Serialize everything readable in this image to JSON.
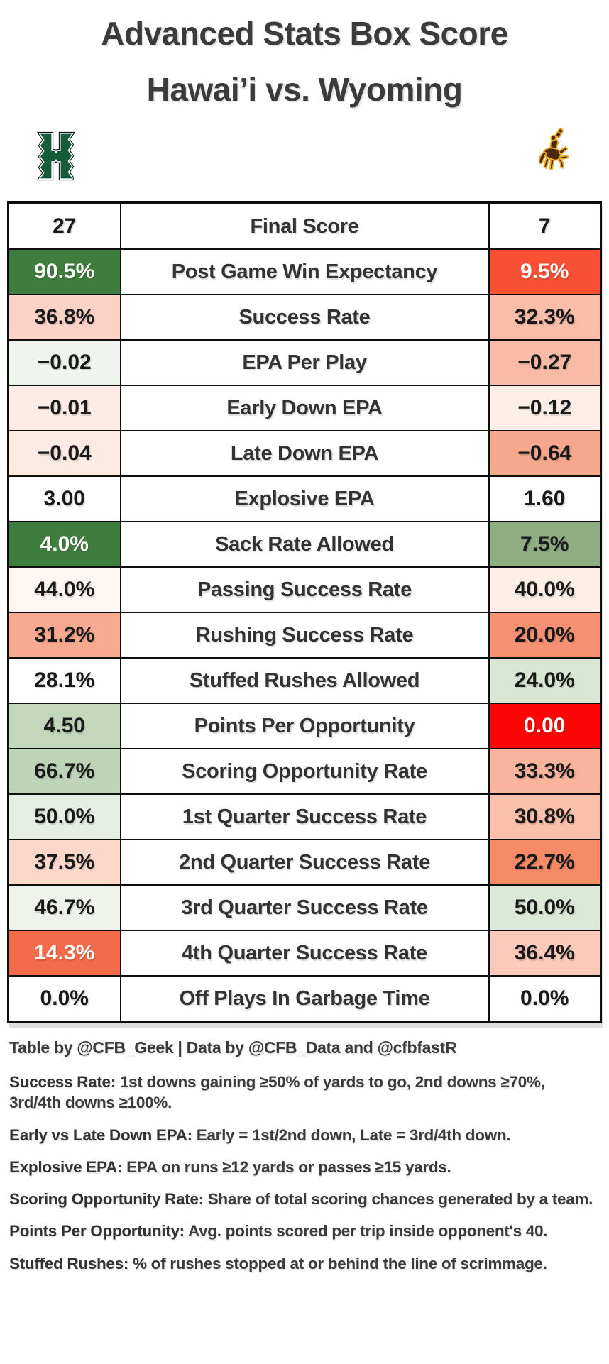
{
  "title_line1": "Advanced Stats Box Score",
  "title_line2": "Hawai’i vs. Wyoming",
  "teams": {
    "hawaii": {
      "name": "Hawai’i",
      "primary_color": "#175c3a"
    },
    "wyoming": {
      "name": "Wyoming",
      "primary_color": "#4c2b0d",
      "accent_color": "#e9a82a"
    }
  },
  "chart_data": {
    "type": "table",
    "title": "Advanced Stats Box Score — Hawai’i vs. Wyoming",
    "categories": [
      "Final Score",
      "Post Game Win Expectancy",
      "Success Rate",
      "EPA Per Play",
      "Early Down EPA",
      "Late Down EPA",
      "Explosive EPA",
      "Sack Rate Allowed",
      "Passing Success Rate",
      "Rushing Success Rate",
      "Stuffed Rushes Allowed",
      "Points Per Opportunity",
      "Scoring Opportunity Rate",
      "1st Quarter Success Rate",
      "2nd Quarter Success Rate",
      "3rd Quarter Success Rate",
      "4th Quarter Success Rate",
      "Off Plays In Garbage Time"
    ],
    "series": [
      {
        "name": "Hawai’i",
        "values": [
          "27",
          "90.5%",
          "36.8%",
          "−0.02",
          "−0.01",
          "−0.04",
          "3.00",
          "4.0%",
          "44.0%",
          "31.2%",
          "28.1%",
          "4.50",
          "66.7%",
          "50.0%",
          "37.5%",
          "46.7%",
          "14.3%",
          "0.0%"
        ]
      },
      {
        "name": "Wyoming",
        "values": [
          "7",
          "9.5%",
          "32.3%",
          "−0.27",
          "−0.12",
          "−0.64",
          "1.60",
          "7.5%",
          "40.0%",
          "20.0%",
          "24.0%",
          "0.00",
          "33.3%",
          "30.8%",
          "22.7%",
          "50.0%",
          "36.4%",
          "0.0%"
        ]
      }
    ],
    "legend_position": "none",
    "grid": true
  },
  "table": {
    "rows": [
      {
        "label": "Final Score",
        "hawaii": "27",
        "hawaii_bg": "#ffffff",
        "wyoming": "7",
        "wyoming_bg": "#ffffff"
      },
      {
        "label": "Post Game Win Expectancy",
        "hawaii": "90.5%",
        "hawaii_bg": "#3e7d3d",
        "hawaii_fg": "#ffffff",
        "wyoming": "9.5%",
        "wyoming_bg": "#f94f33",
        "wyoming_fg": "#ffffff"
      },
      {
        "label": "Success Rate",
        "hawaii": "36.8%",
        "hawaii_bg": "#fbd3c6",
        "wyoming": "32.3%",
        "wyoming_bg": "#f9bda9"
      },
      {
        "label": "EPA Per Play",
        "hawaii": "−0.02",
        "hawaii_bg": "#f0f4ef",
        "wyoming": "−0.27",
        "wyoming_bg": "#f9bba7"
      },
      {
        "label": "Early Down EPA",
        "hawaii": "−0.01",
        "hawaii_bg": "#fdece6",
        "wyoming": "−0.12",
        "wyoming_bg": "#fdefe8"
      },
      {
        "label": "Late Down EPA",
        "hawaii": "−0.04",
        "hawaii_bg": "#fdeae2",
        "wyoming": "−0.64",
        "wyoming_bg": "#f6a88e"
      },
      {
        "label": "Explosive EPA",
        "hawaii": "3.00",
        "hawaii_bg": "#ffffff",
        "wyoming": "1.60",
        "wyoming_bg": "#ffffff"
      },
      {
        "label": "Sack Rate Allowed",
        "hawaii": "4.0%",
        "hawaii_bg": "#3e7d3d",
        "hawaii_fg": "#ffffff",
        "wyoming": "7.5%",
        "wyoming_bg": "#8fae82"
      },
      {
        "label": "Passing Success Rate",
        "hawaii": "44.0%",
        "hawaii_bg": "#fdf6f2",
        "wyoming": "40.0%",
        "wyoming_bg": "#fdeee7"
      },
      {
        "label": "Rushing Success Rate",
        "hawaii": "31.2%",
        "hawaii_bg": "#f8aa90",
        "wyoming": "20.0%",
        "wyoming_bg": "#f69273"
      },
      {
        "label": "Stuffed Rushes Allowed",
        "hawaii": "28.1%",
        "hawaii_bg": "#ffffff",
        "wyoming": "24.0%",
        "wyoming_bg": "#dbe7d5"
      },
      {
        "label": "Points Per Opportunity",
        "hawaii": "4.50",
        "hawaii_bg": "#c3d7bb",
        "wyoming": "0.00",
        "wyoming_bg": "#fb0505",
        "wyoming_fg": "#ffffff"
      },
      {
        "label": "Scoring Opportunity Rate",
        "hawaii": "66.7%",
        "hawaii_bg": "#bed4b7",
        "wyoming": "33.3%",
        "wyoming_bg": "#f9b49e"
      },
      {
        "label": "1st Quarter Success Rate",
        "hawaii": "50.0%",
        "hawaii_bg": "#e6ede2",
        "wyoming": "30.8%",
        "wyoming_bg": "#fbc0ac"
      },
      {
        "label": "2nd Quarter Success Rate",
        "hawaii": "37.5%",
        "hawaii_bg": "#fcd8cb",
        "wyoming": "22.7%",
        "wyoming_bg": "#f78b68"
      },
      {
        "label": "3rd Quarter Success Rate",
        "hawaii": "46.7%",
        "hawaii_bg": "#eff3ec",
        "wyoming": "50.0%",
        "wyoming_bg": "#dde9d8"
      },
      {
        "label": "4th Quarter Success Rate",
        "hawaii": "14.3%",
        "hawaii_bg": "#f56a48",
        "hawaii_fg": "#ffffff",
        "wyoming": "36.4%",
        "wyoming_bg": "#fccaba"
      },
      {
        "label": "Off Plays In Garbage Time",
        "hawaii": "0.0%",
        "hawaii_bg": "#ffffff",
        "wyoming": "0.0%",
        "wyoming_bg": "#ffffff"
      }
    ]
  },
  "footer": {
    "credit": "Table by @CFB_Geek | Data by @CFB_Data and @cfbfastR",
    "notes": [
      {
        "term": "Success Rate",
        "description": "1st downs gaining ≥50% of yards to go, 2nd downs ≥70%, 3rd/4th downs ≥100%."
      },
      {
        "term": "Early vs Late Down EPA",
        "description": "Early = 1st/2nd down, Late = 3rd/4th down."
      },
      {
        "term": "Explosive EPA",
        "description": "EPA on runs ≥12 yards or passes ≥15 yards."
      },
      {
        "term": "Scoring Opportunity Rate",
        "description": "Share of total scoring chances generated by a team."
      },
      {
        "term": "Points Per Opportunity",
        "description": "Avg. points scored per trip inside opponent's 40."
      },
      {
        "term": "Stuffed Rushes",
        "description": "% of rushes stopped at or behind the line of scrimmage."
      }
    ]
  }
}
